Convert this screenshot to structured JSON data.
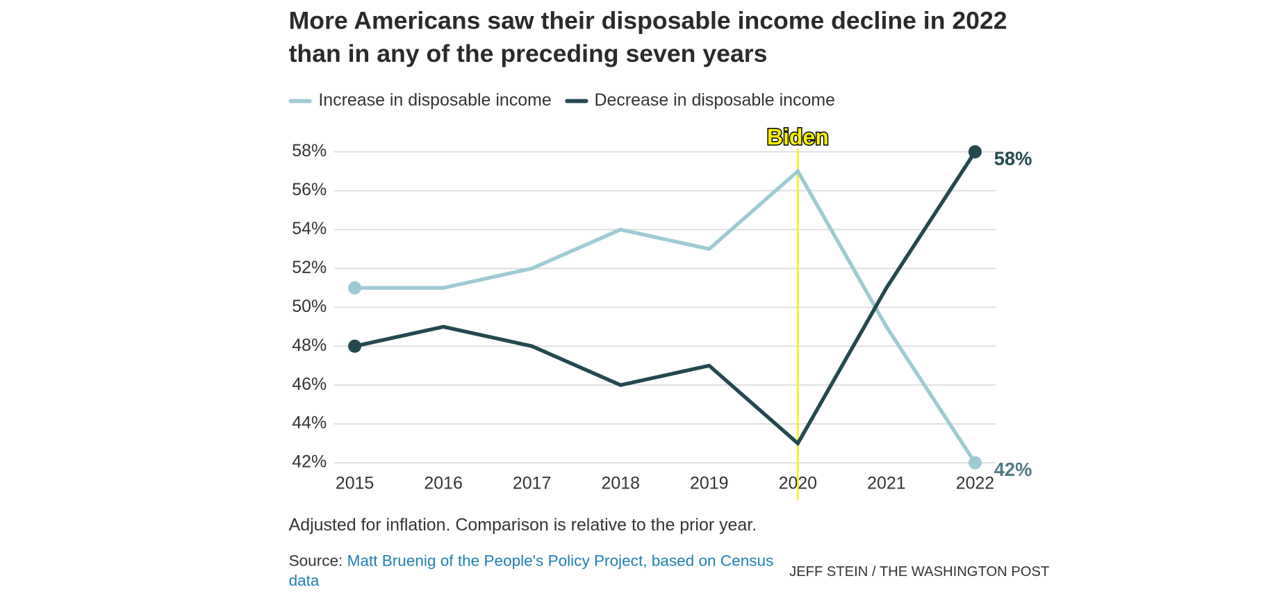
{
  "chart_data": {
    "type": "line",
    "title": "More Americans saw their disposable income decline in 2022 than in any of the preceding seven years",
    "categories": [
      "2015",
      "2016",
      "2017",
      "2018",
      "2019",
      "2020",
      "2021",
      "2022"
    ],
    "series": [
      {
        "name": "Increase in disposable income",
        "color": "#9ecbd3",
        "values": [
          51,
          51,
          52,
          54,
          53,
          57,
          49,
          42
        ],
        "value_labels": [
          null,
          null,
          null,
          null,
          null,
          null,
          null,
          "42%"
        ]
      },
      {
        "name": "Decrease in disposable income",
        "color": "#23494f",
        "values": [
          48,
          49,
          48,
          46,
          47,
          43,
          51,
          58
        ],
        "value_labels": [
          null,
          null,
          null,
          null,
          null,
          null,
          null,
          "58%"
        ]
      }
    ],
    "ylim": [
      42,
      58
    ],
    "yticks": [
      {
        "value": 42,
        "label": "42%"
      },
      {
        "value": 44,
        "label": "44%"
      },
      {
        "value": 46,
        "label": "46%"
      },
      {
        "value": 48,
        "label": "48%"
      },
      {
        "value": 50,
        "label": "50%"
      },
      {
        "value": 52,
        "label": "52%"
      },
      {
        "value": 54,
        "label": "54%"
      },
      {
        "value": 56,
        "label": "56%"
      },
      {
        "value": 58,
        "label": "58%"
      }
    ],
    "grid": true,
    "legend": "top-left",
    "annotations": [
      {
        "text": "Biden",
        "x": "2020",
        "color": "#f5f200"
      }
    ],
    "note": "Adjusted for inflation. Comparison is relative to the prior year.",
    "source_label": "Source:",
    "source": "Matt Bruenig of the People's Policy Project, based on Census data",
    "credit": "JEFF STEIN / THE WASHINGTON POST"
  }
}
